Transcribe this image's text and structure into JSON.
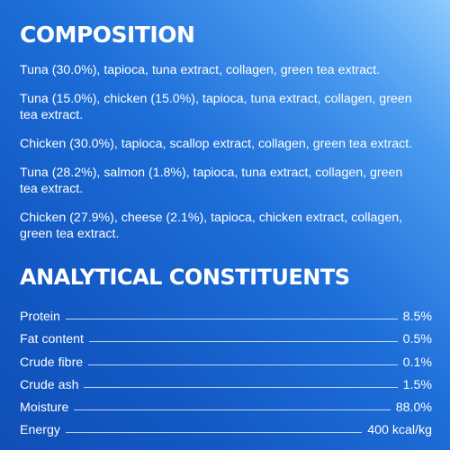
{
  "composition": {
    "title": "COMPOSITION",
    "recipes": [
      "Tuna (30.0%), tapioca, tuna extract, collagen, green tea extract.",
      "Tuna (15.0%), chicken (15.0%), tapioca, tuna extract, collagen, green tea extract.",
      "Chicken (30.0%), tapioca, scallop extract, collagen, green tea extract.",
      "Tuna (28.2%), salmon (1.8%), tapioca, tuna extract, collagen, green tea extract.",
      "Chicken (27.9%), cheese (2.1%), tapioca, chicken extract, collagen, green tea extract."
    ]
  },
  "analytical": {
    "title": "ANALYTICAL CONSTITUENTS",
    "rows": [
      {
        "name": "Protein",
        "value": "8.5%"
      },
      {
        "name": "Fat content",
        "value": "0.5%"
      },
      {
        "name": "Crude fibre",
        "value": "0.1%"
      },
      {
        "name": "Crude ash",
        "value": "1.5%"
      },
      {
        "name": "Moisture",
        "value": "88.0%"
      },
      {
        "name": "Energy",
        "value": "400 kcal/kg"
      }
    ]
  },
  "colors": {
    "background_light": "#8ecbff",
    "background_dark": "#0f4fb6",
    "text": "#ffffff"
  }
}
